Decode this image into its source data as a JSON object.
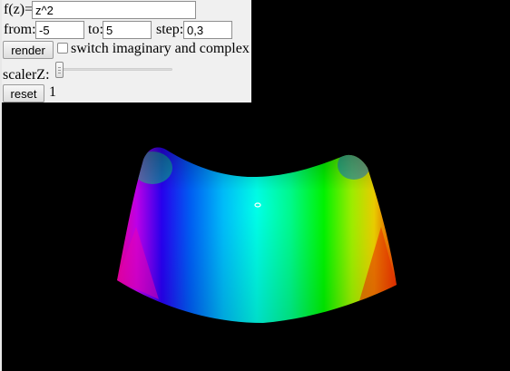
{
  "controls": {
    "function_label": "f(z)=",
    "function_value": "z^2",
    "from_label": "from:",
    "from_value": "-5",
    "to_label": "to:",
    "to_value": "5",
    "step_label": "step:",
    "step_value": "0,3",
    "render_label": "render",
    "switch_label": "switch imaginary and complex",
    "switch_checked": false,
    "scaler_label": "scalerZ:",
    "scaler_value": 0,
    "reset_label": "reset",
    "scale_readout": "1"
  },
  "plot": {
    "function": "z^2",
    "domain": [
      -5,
      5
    ],
    "background": "#000000",
    "coloring": "hue by phase"
  }
}
